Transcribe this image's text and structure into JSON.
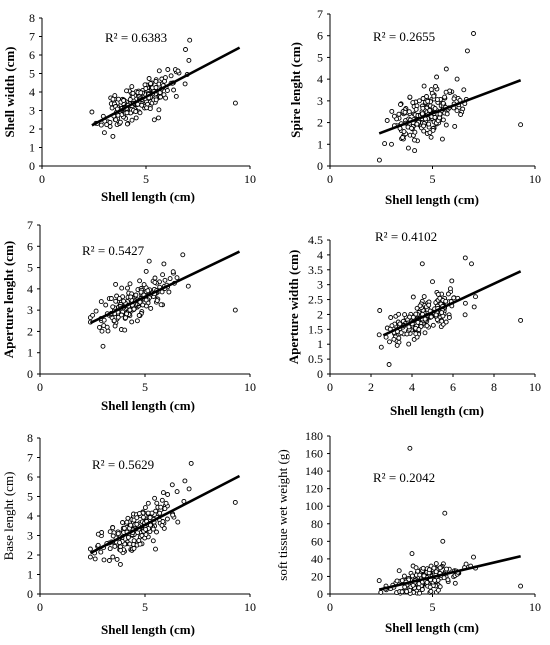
{
  "figure": {
    "panel_count": 6
  },
  "chart_data": [
    {
      "type": "scatter",
      "xlabel": "Shell length (cm)",
      "ylabel": "Shell width (cm)",
      "xlim": [
        0,
        10
      ],
      "ylim": [
        0,
        8
      ],
      "xticks": [
        0,
        5,
        10
      ],
      "yticks": [
        0,
        1,
        2,
        3,
        4,
        5,
        6,
        7,
        8
      ],
      "annotation": "R² = 0.6383",
      "trendline": {
        "x1": 2.4,
        "y1": 2.2,
        "x2": 9.5,
        "y2": 6.4
      },
      "cloud": {
        "n": 200,
        "xmin": 2.4,
        "xmax": 7.1,
        "xmean": 4.6,
        "xsd": 0.85,
        "noise": 0.42,
        "seed": 11
      },
      "outliers": [
        [
          9.3,
          3.4
        ],
        [
          7.1,
          6.8
        ],
        [
          6.9,
          6.3
        ],
        [
          3.0,
          1.8
        ],
        [
          5.6,
          2.6
        ],
        [
          5.4,
          2.5
        ]
      ]
    },
    {
      "type": "scatter",
      "xlabel": "Shell length (cm)",
      "ylabel": "Spire lenght (cm)",
      "xlim": [
        0,
        10
      ],
      "ylim": [
        0,
        7
      ],
      "xticks": [
        0,
        5,
        10
      ],
      "yticks": [
        0,
        1,
        2,
        3,
        4,
        5,
        6,
        7
      ],
      "annotation": "R² = 0.2655",
      "trendline": {
        "x1": 2.4,
        "y1": 1.5,
        "x2": 9.3,
        "y2": 3.95
      },
      "cloud": {
        "n": 200,
        "xmin": 2.4,
        "xmax": 7.1,
        "xmean": 4.6,
        "xsd": 0.85,
        "noise": 0.55,
        "seed": 23
      },
      "outliers": [
        [
          9.3,
          1.9
        ],
        [
          7.0,
          6.1
        ],
        [
          6.7,
          5.3
        ],
        [
          6.2,
          4.0
        ],
        [
          5.2,
          4.1
        ],
        [
          3.0,
          1.0
        ]
      ]
    },
    {
      "type": "scatter",
      "xlabel": "Shell length (cm)",
      "ylabel": "Aperture lenght (cm)",
      "xlim": [
        0,
        10
      ],
      "ylim": [
        0,
        7
      ],
      "xticks": [
        0,
        5,
        10
      ],
      "yticks": [
        0,
        1,
        2,
        3,
        4,
        5,
        6,
        7
      ],
      "annotation": "R² = 0.5427",
      "trendline": {
        "x1": 2.4,
        "y1": 2.4,
        "x2": 9.5,
        "y2": 5.75
      },
      "cloud": {
        "n": 200,
        "xmin": 2.4,
        "xmax": 7.1,
        "xmean": 4.6,
        "xsd": 0.85,
        "noise": 0.4,
        "seed": 37
      },
      "outliers": [
        [
          9.3,
          3.0
        ],
        [
          6.8,
          5.6
        ],
        [
          5.2,
          5.3
        ],
        [
          3.0,
          1.3
        ],
        [
          3.2,
          2.2
        ]
      ]
    },
    {
      "type": "scatter",
      "xlabel": "Shell length (cm)",
      "ylabel": "Aperture width (cm)",
      "xlim": [
        0,
        10
      ],
      "ylim": [
        0,
        4.5
      ],
      "xticks": [
        0,
        2,
        4,
        6,
        8,
        10
      ],
      "yticks": [
        0,
        0.5,
        1,
        1.5,
        2,
        2.5,
        3,
        3.5,
        4,
        4.5
      ],
      "annotation": "R² = 0.4102",
      "trendline": {
        "x1": 2.6,
        "y1": 1.3,
        "x2": 9.3,
        "y2": 3.45
      },
      "cloud": {
        "n": 200,
        "xmin": 2.4,
        "xmax": 7.1,
        "xmean": 4.6,
        "xsd": 0.85,
        "noise": 0.32,
        "seed": 41
      },
      "outliers": [
        [
          9.3,
          1.8
        ],
        [
          6.6,
          3.9
        ],
        [
          6.9,
          3.7
        ],
        [
          4.5,
          3.7
        ],
        [
          2.5,
          0.9
        ],
        [
          5.0,
          3.1
        ]
      ]
    },
    {
      "type": "scatter",
      "xlabel": "Shell length (cm)",
      "ylabel": "Base lenght (cm)",
      "xlim": [
        0,
        10
      ],
      "ylim": [
        0,
        8
      ],
      "xticks": [
        0,
        5,
        10
      ],
      "yticks": [
        0,
        1,
        2,
        3,
        4,
        5,
        6,
        7,
        8
      ],
      "annotation": "R² = 0.5629",
      "trendline": {
        "x1": 2.4,
        "y1": 2.1,
        "x2": 9.5,
        "y2": 6.05
      },
      "cloud": {
        "n": 200,
        "xmin": 2.4,
        "xmax": 7.1,
        "xmean": 4.6,
        "xsd": 0.85,
        "noise": 0.48,
        "seed": 53
      },
      "outliers": [
        [
          9.3,
          4.7
        ],
        [
          7.2,
          6.7
        ],
        [
          6.9,
          5.8
        ],
        [
          6.3,
          5.6
        ],
        [
          5.5,
          2.3
        ],
        [
          2.6,
          2.1
        ]
      ]
    },
    {
      "type": "scatter",
      "xlabel": "Shell length (cm)",
      "ylabel": "soft tissue wet weight (g)",
      "xlim": [
        0,
        10
      ],
      "ylim": [
        0,
        180
      ],
      "xticks": [
        0,
        5,
        10
      ],
      "yticks": [
        0,
        20,
        40,
        60,
        80,
        100,
        120,
        140,
        160,
        180
      ],
      "annotation": "R² = 0.2042",
      "trendline": {
        "x1": 2.4,
        "y1": 5,
        "x2": 9.3,
        "y2": 43
      },
      "cloud": {
        "n": 200,
        "xmin": 2.4,
        "xmax": 7.1,
        "xmean": 4.6,
        "xsd": 0.85,
        "noise": 7,
        "seed": 67
      },
      "outliers": [
        [
          3.9,
          166
        ],
        [
          5.6,
          92
        ],
        [
          5.5,
          60
        ],
        [
          4.0,
          46
        ],
        [
          4.2,
          30
        ],
        [
          9.3,
          9
        ],
        [
          7.0,
          42
        ]
      ]
    }
  ]
}
